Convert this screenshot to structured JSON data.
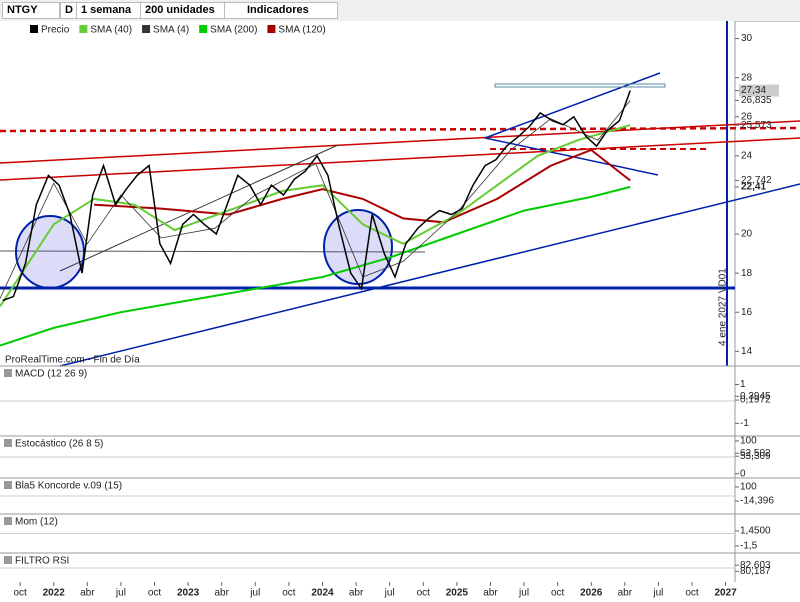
{
  "toolbar": {
    "symbol": "NTGY",
    "mode": "D",
    "period": "1 semana",
    "units": "200 unidades",
    "indicators": "Indicadores"
  },
  "watermark": "ProRealTime.com - Fin de Día",
  "annotation": "4 ene 2027 VD01",
  "chart_data": {
    "type": "line",
    "xlim": [
      2021.6,
      2027.07
    ],
    "xticks": [
      {
        "value": 2021.75,
        "label": "oct"
      },
      {
        "value": 2022,
        "label": "2022"
      },
      {
        "value": 2022.25,
        "label": "abr"
      },
      {
        "value": 2022.5,
        "label": "jul"
      },
      {
        "value": 2022.75,
        "label": "oct"
      },
      {
        "value": 2023,
        "label": "2023"
      },
      {
        "value": 2023.25,
        "label": "abr"
      },
      {
        "value": 2023.5,
        "label": "jul"
      },
      {
        "value": 2023.75,
        "label": "oct"
      },
      {
        "value": 2024,
        "label": "2024"
      },
      {
        "value": 2024.25,
        "label": "abr"
      },
      {
        "value": 2024.5,
        "label": "jul"
      },
      {
        "value": 2024.75,
        "label": "oct"
      },
      {
        "value": 2025,
        "label": "2025"
      },
      {
        "value": 2025.25,
        "label": "abr"
      },
      {
        "value": 2025.5,
        "label": "jul"
      },
      {
        "value": 2025.75,
        "label": "oct"
      },
      {
        "value": 2026,
        "label": "2026"
      },
      {
        "value": 2026.25,
        "label": "abr"
      },
      {
        "value": 2026.5,
        "label": "jul"
      },
      {
        "value": 2026.75,
        "label": "oct"
      },
      {
        "value": 2027,
        "label": "2027"
      }
    ],
    "ylim": [
      13.3,
      30.9
    ],
    "yticks": [
      30,
      28,
      {
        "value": 27.34,
        "label": "27,34"
      },
      {
        "value": 26.835,
        "label": "26,835"
      },
      26,
      {
        "value": 25.573,
        "label": "25,573"
      },
      24,
      {
        "value": 22.742,
        "label": "22,742"
      },
      {
        "value": 22.41,
        "label": "22,41"
      },
      20,
      18,
      16,
      14
    ],
    "series": [
      {
        "name": "Precio",
        "color": "#000000",
        "x": [
          2021.62,
          2021.7,
          2021.79,
          2021.87,
          2021.96,
          2022.04,
          2022.12,
          2022.21,
          2022.29,
          2022.37,
          2022.46,
          2022.54,
          2022.62,
          2022.71,
          2022.79,
          2022.87,
          2022.96,
          2023.04,
          2023.12,
          2023.21,
          2023.29,
          2023.37,
          2023.46,
          2023.54,
          2023.62,
          2023.71,
          2023.79,
          2023.87,
          2023.96,
          2024.04,
          2024.12,
          2024.21,
          2024.29,
          2024.37,
          2024.46,
          2024.54,
          2024.62,
          2024.71,
          2024.79,
          2024.87,
          2024.96,
          2025.04,
          2025.12,
          2025.21,
          2025.29,
          2025.37,
          2025.46,
          2025.54,
          2025.62,
          2025.71,
          2025.79,
          2025.87,
          2025.96,
          2026.04,
          2026.12,
          2026.21,
          2026.29
        ],
        "values": [
          16.6,
          16.8,
          18.5,
          21.5,
          23.0,
          22.5,
          21.0,
          18.0,
          22.0,
          23.5,
          21.5,
          22.3,
          23.0,
          23.5,
          19.5,
          18.5,
          20.5,
          21.0,
          20.5,
          20.0,
          21.5,
          23.0,
          22.5,
          21.5,
          22.5,
          22.0,
          22.8,
          23.2,
          24.0,
          23.0,
          20.5,
          18.0,
          17.2,
          21.0,
          19.0,
          17.8,
          19.5,
          20.3,
          20.8,
          21.2,
          21.0,
          21.3,
          22.5,
          23.5,
          23.8,
          24.5,
          25.0,
          25.5,
          26.2,
          25.8,
          25.6,
          26.0,
          25.0,
          24.5,
          25.3,
          25.8,
          27.34
        ]
      },
      {
        "name": "SMA (40)",
        "color": "#66cc33",
        "x": [
          2021.6,
          2022.0,
          2022.3,
          2022.6,
          2022.9,
          2023.3,
          2023.7,
          2024.0,
          2024.3,
          2024.6,
          2025.0,
          2025.3,
          2025.6,
          2025.9,
          2026.29
        ],
        "values": [
          16.3,
          20.5,
          21.8,
          21.5,
          20.2,
          21.2,
          22.2,
          22.5,
          20.5,
          19.5,
          21.0,
          22.5,
          24.0,
          24.8,
          25.573
        ]
      },
      {
        "name": "SMA (4)",
        "color": "#333333",
        "x": [
          2021.6,
          2022.0,
          2022.25,
          2022.5,
          2022.8,
          2023.2,
          2023.5,
          2023.95,
          2024.3,
          2024.6,
          2025.0,
          2025.4,
          2025.7,
          2026.05,
          2026.29
        ],
        "values": [
          16.7,
          22.6,
          19.5,
          22.0,
          19.8,
          20.3,
          22.0,
          23.6,
          17.8,
          18.6,
          21.1,
          24.3,
          25.9,
          24.8,
          26.835
        ]
      },
      {
        "name": "SMA (200)",
        "color": "#00cc00",
        "x": [
          2021.6,
          2022.0,
          2022.5,
          2023.0,
          2023.5,
          2024.0,
          2024.5,
          2025.0,
          2025.5,
          2026.0,
          2026.29
        ],
        "values": [
          14.3,
          15.2,
          16.0,
          16.6,
          17.2,
          17.8,
          18.8,
          20.0,
          21.2,
          21.9,
          22.41
        ]
      },
      {
        "name": "SMA (120)",
        "color": "#aa0000",
        "x": [
          2022.3,
          2022.8,
          2023.3,
          2023.7,
          2024.0,
          2024.3,
          2024.6,
          2024.9,
          2025.3,
          2025.7,
          2026.0,
          2026.29
        ],
        "values": [
          21.5,
          21.3,
          21.0,
          21.8,
          22.3,
          21.8,
          20.8,
          20.6,
          21.8,
          23.5,
          24.3,
          22.742
        ]
      }
    ]
  },
  "panels": [
    {
      "name": "MACD (12 26 9)",
      "ylim": [
        -1.6,
        1.9
      ],
      "yticks": [
        1,
        {
          "value": 0.3945,
          "label": "0,3945"
        },
        {
          "value": 0.1972,
          "label": "0,1972"
        },
        -1
      ]
    },
    {
      "name": "Estocástico (26 8 5)",
      "ylim": [
        -10,
        112
      ],
      "yticks": [
        100,
        {
          "value": 62.502,
          "label": "62,502"
        },
        {
          "value": 53.309,
          "label": "53,309"
        },
        0
      ]
    },
    {
      "name": "Bla5 Koncorde v.09 (15)",
      "ylim": [
        -112,
        165
      ],
      "yticks": [
        100,
        {
          "value": -14.396,
          "label": "-14,396"
        }
      ]
    },
    {
      "name": "Mom (12)",
      "ylim": [
        -2.7,
        4.6
      ],
      "yticks": [
        {
          "value": 1.45,
          "label": "1,4500"
        },
        {
          "value": -1.5,
          "label": "-1,5"
        }
      ]
    },
    {
      "name": "FILTRO RSI",
      "ylim": [
        76,
        87
      ],
      "yticks": [
        {
          "value": 82.603,
          "label": "82,603"
        },
        {
          "value": 80.187,
          "label": "80,187"
        }
      ]
    }
  ]
}
